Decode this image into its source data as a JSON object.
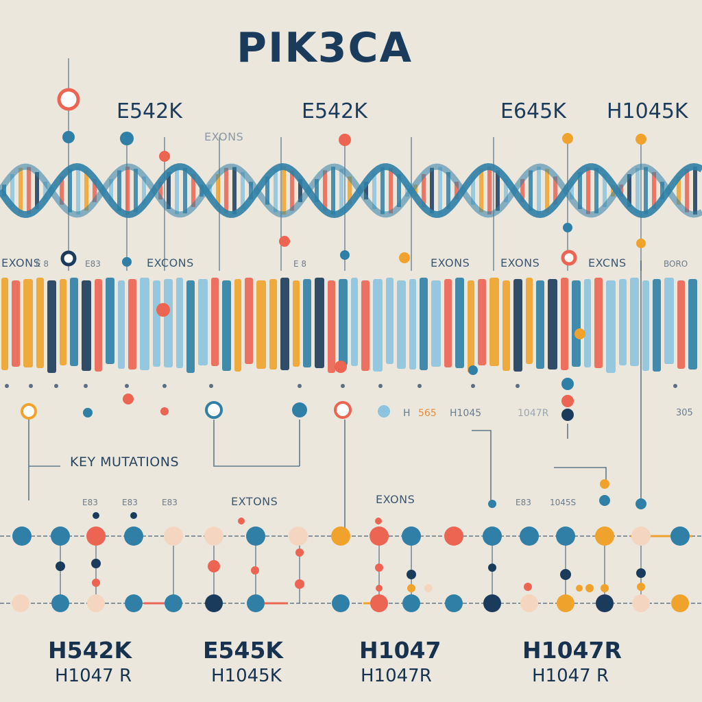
{
  "header": {
    "title": "PIK3CA"
  },
  "top_mutations": [
    "E542K",
    "E542K",
    "E645K",
    "H1045K"
  ],
  "faint_label": "EXONS",
  "exon_labels": {
    "left": "EXONS",
    "small_a": "E 8",
    "small_b": "E83",
    "center": "EXCONS",
    "small_c": "E 8",
    "right_a": "EXONS",
    "right_b": "EXONS",
    "right_c": "EXCNS",
    "far_right": "BORO"
  },
  "under_bar_labels": {
    "h1_partial": "H",
    "h1_num": "565",
    "h1045": "H1045",
    "h1047": "1047R",
    "right_small": "305"
  },
  "key_mutations": {
    "label": "KEY MUTATIONS"
  },
  "lower_labels": {
    "s1": "E83",
    "s2": "E83",
    "s3": "E83",
    "exons1": "EXTONS",
    "exons2": "EXONS",
    "s4": "E83",
    "s5": "1045S"
  },
  "bottom_mutations": [
    {
      "main": "H542K",
      "sub": "H1047 R"
    },
    {
      "main": "E545K",
      "sub": "H1045K"
    },
    {
      "main": "H1047",
      "sub": "H1047R"
    },
    {
      "main": "H1047R",
      "sub": "H1047 R"
    }
  ],
  "colors": {
    "background": "#ece7dd",
    "navy": "#1b3b5c",
    "teal": "#2f7fa6",
    "light_blue": "#8cc3de",
    "orange": "#f0a32c",
    "coral": "#ec6452",
    "peach": "#f4d6c0"
  }
}
